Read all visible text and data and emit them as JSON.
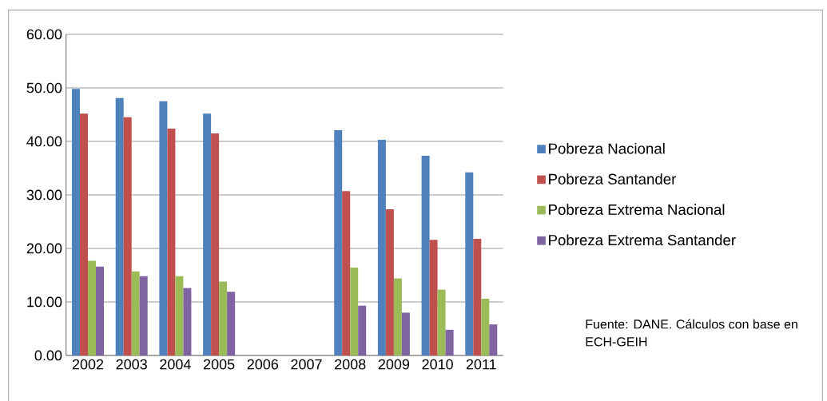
{
  "chart_data": {
    "type": "bar",
    "categories": [
      "2002",
      "2003",
      "2004",
      "2005",
      "2006",
      "2007",
      "2008",
      "2009",
      "2010",
      "2011"
    ],
    "series": [
      {
        "name": "Pobreza Nacional",
        "color": "#4f81bd",
        "values": [
          49.8,
          48.1,
          47.5,
          45.2,
          null,
          null,
          42.1,
          40.3,
          37.3,
          34.2
        ]
      },
      {
        "name": "Pobreza Santander",
        "color": "#c0504d",
        "values": [
          45.2,
          44.5,
          42.4,
          41.5,
          null,
          null,
          30.7,
          27.3,
          21.6,
          21.8
        ]
      },
      {
        "name": "Pobreza Extrema Nacional",
        "color": "#9bbb59",
        "values": [
          17.7,
          15.7,
          14.8,
          13.8,
          null,
          null,
          16.4,
          14.4,
          12.3,
          10.6
        ]
      },
      {
        "name": "Pobreza Extrema Santander",
        "color": "#8064a2",
        "values": [
          16.6,
          14.8,
          12.6,
          11.9,
          null,
          null,
          9.3,
          8.0,
          4.8,
          5.8
        ]
      }
    ],
    "ylim": [
      0,
      60
    ],
    "yticks": [
      {
        "value": 0,
        "label": "0.00"
      },
      {
        "value": 10,
        "label": "10.00"
      },
      {
        "value": 20,
        "label": "20.00"
      },
      {
        "value": 30,
        "label": "30.00"
      },
      {
        "value": 40,
        "label": "40.00"
      },
      {
        "value": 50,
        "label": "50.00"
      },
      {
        "value": 60,
        "label": "60.00"
      }
    ],
    "grid": "y",
    "legend": "right",
    "annotations": [
      "Fuente:  DANE.  Cálculos con base en  ECH-GEIH"
    ]
  }
}
